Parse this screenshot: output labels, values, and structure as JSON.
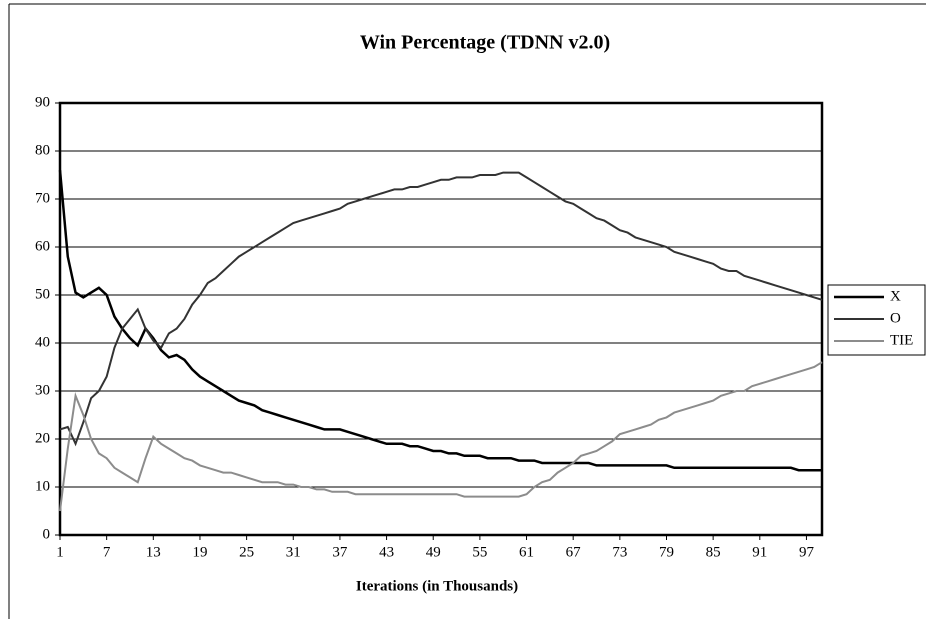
{
  "chart_data": {
    "type": "line",
    "title": "Win Percentage (TDNN v2.0)",
    "xlabel": "Iterations (in Thousands)",
    "x": [
      1,
      2,
      3,
      4,
      5,
      6,
      7,
      8,
      9,
      10,
      11,
      12,
      13,
      14,
      15,
      16,
      17,
      18,
      19,
      20,
      21,
      22,
      23,
      24,
      25,
      26,
      27,
      28,
      29,
      30,
      31,
      32,
      33,
      34,
      35,
      36,
      37,
      38,
      39,
      40,
      41,
      42,
      43,
      44,
      45,
      46,
      47,
      48,
      49,
      50,
      51,
      52,
      53,
      54,
      55,
      56,
      57,
      58,
      59,
      60,
      61,
      62,
      63,
      64,
      65,
      66,
      67,
      68,
      69,
      70,
      71,
      72,
      73,
      74,
      75,
      76,
      77,
      78,
      79,
      80,
      81,
      82,
      83,
      84,
      85,
      86,
      87,
      88,
      89,
      90,
      91,
      92,
      93,
      94,
      95,
      96,
      97,
      98,
      99
    ],
    "xlim": [
      1,
      99
    ],
    "xticks": [
      1,
      7,
      13,
      19,
      25,
      31,
      37,
      43,
      49,
      55,
      61,
      67,
      73,
      79,
      85,
      91,
      97
    ],
    "ylim": [
      0,
      90
    ],
    "yticks": [
      0,
      10,
      20,
      30,
      40,
      50,
      60,
      70,
      80,
      90
    ],
    "grid": true,
    "legend": "right",
    "series": [
      {
        "name": "X",
        "color": "#000000",
        "values": [
          76,
          58,
          50.5,
          49.5,
          50.5,
          51.5,
          50,
          45.5,
          43,
          41,
          39.5,
          43,
          41,
          38.5,
          37,
          37.5,
          36.5,
          34.5,
          33,
          32,
          31,
          30,
          29,
          28,
          27.5,
          27,
          26,
          25.5,
          25,
          24.5,
          24,
          23.5,
          23,
          22.5,
          22,
          22,
          22,
          21.5,
          21,
          20.5,
          20,
          19.5,
          19,
          19,
          19,
          18.5,
          18.5,
          18,
          17.5,
          17.5,
          17,
          17,
          16.5,
          16.5,
          16.5,
          16,
          16,
          16,
          16,
          15.5,
          15.5,
          15.5,
          15,
          15,
          15,
          15,
          15,
          15,
          15,
          14.5,
          14.5,
          14.5,
          14.5,
          14.5,
          14.5,
          14.5,
          14.5,
          14.5,
          14.5,
          14,
          14,
          14,
          14,
          14,
          14,
          14,
          14,
          14,
          14,
          14,
          14,
          14,
          14,
          14,
          14,
          13.5,
          13.5,
          13.5,
          13.5
        ]
      },
      {
        "name": "O",
        "color": "#333333",
        "values": [
          22,
          22.5,
          19,
          23.5,
          28.5,
          30,
          33,
          39,
          43,
          45,
          47,
          43,
          40.5,
          39,
          42,
          43,
          45,
          48,
          50,
          52.5,
          53.5,
          55,
          56.5,
          58,
          59,
          60,
          61,
          62,
          63,
          64,
          65,
          65.5,
          66,
          66.5,
          67,
          67.5,
          68,
          69,
          69.5,
          70,
          70.5,
          71,
          71.5,
          72,
          72,
          72.5,
          72.5,
          73,
          73.5,
          74,
          74,
          74.5,
          74.5,
          74.5,
          75,
          75,
          75,
          75.5,
          75.5,
          75.5,
          74.5,
          73.5,
          72.5,
          71.5,
          70.5,
          69.5,
          69,
          68,
          67,
          66,
          65.5,
          64.5,
          63.5,
          63,
          62,
          61.5,
          61,
          60.5,
          60,
          59,
          58.5,
          58,
          57.5,
          57,
          56.5,
          55.5,
          55,
          55,
          54,
          53.5,
          53,
          52.5,
          52,
          51.5,
          51,
          50.5,
          50,
          49.5,
          49
        ]
      },
      {
        "name": "TIE",
        "color": "#8c8c8c",
        "values": [
          5,
          18,
          29,
          25,
          20,
          17,
          16,
          14,
          13,
          12,
          11,
          16,
          20.5,
          19,
          18,
          17,
          16,
          15.5,
          14.5,
          14,
          13.5,
          13,
          13,
          12.5,
          12,
          11.5,
          11,
          11,
          11,
          10.5,
          10.5,
          10,
          10,
          9.5,
          9.5,
          9,
          9,
          9,
          8.5,
          8.5,
          8.5,
          8.5,
          8.5,
          8.5,
          8.5,
          8.5,
          8.5,
          8.5,
          8.5,
          8.5,
          8.5,
          8.5,
          8,
          8,
          8,
          8,
          8,
          8,
          8,
          8,
          8.5,
          10,
          11,
          11.5,
          13,
          14,
          15,
          16.5,
          17,
          17.5,
          18.5,
          19.5,
          21,
          21.5,
          22,
          22.5,
          23,
          24,
          24.5,
          25.5,
          26,
          26.5,
          27,
          27.5,
          28,
          29,
          29.5,
          30,
          30,
          31,
          31.5,
          32,
          32.5,
          33,
          33.5,
          34,
          34.5,
          35,
          36
        ]
      }
    ]
  }
}
